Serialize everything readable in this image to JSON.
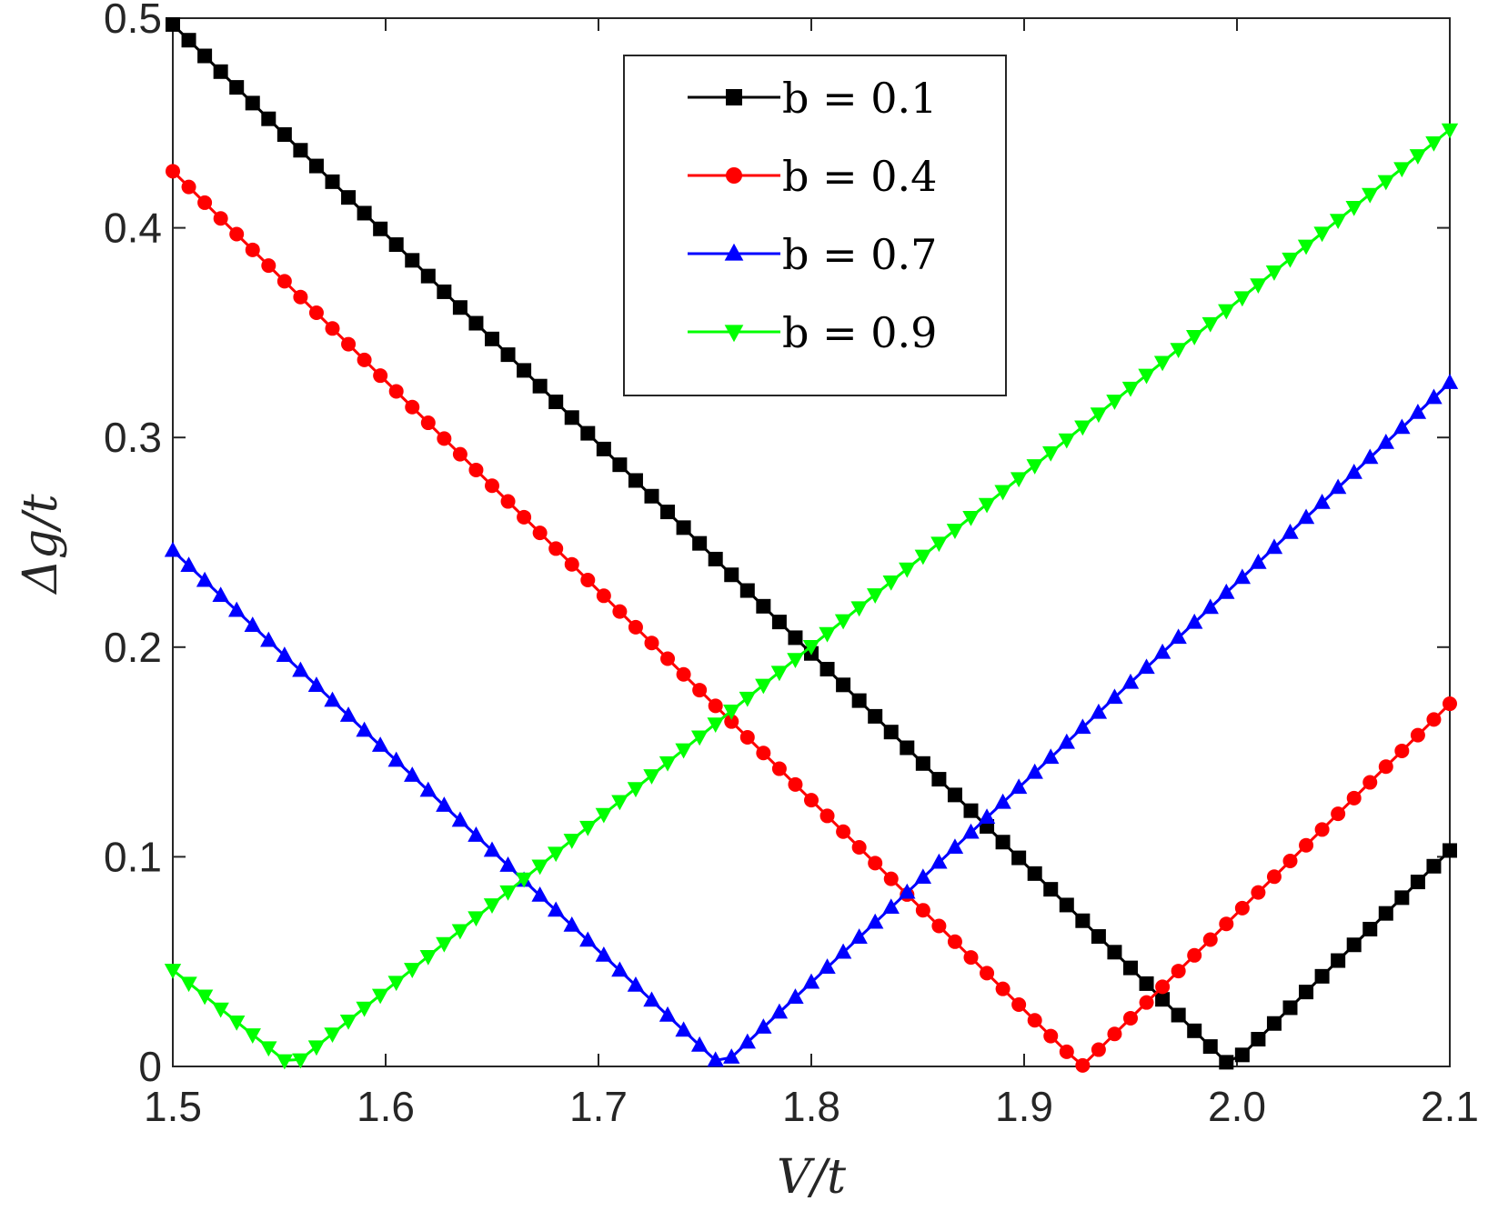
{
  "chart_data": {
    "type": "line",
    "title": "",
    "xlabel": "V/t",
    "ylabel": "Δg/t",
    "xlim": [
      1.5,
      2.1
    ],
    "ylim": [
      0,
      0.5
    ],
    "xticks": [
      "1.5",
      "1.6",
      "1.7",
      "1.8",
      "1.9",
      "2.0",
      "2.1"
    ],
    "yticks": [
      "0",
      "0.1",
      "0.2",
      "0.3",
      "0.4",
      "0.5"
    ],
    "grid": false,
    "legend_position": "top-center",
    "x_start": 1.5,
    "x_step": 0.0075,
    "x_count": 81,
    "series": [
      {
        "name": "b = 0.1",
        "color": "#000000",
        "marker": "square",
        "gap_at_start": 0.497,
        "closing_point": 1.997
      },
      {
        "name": "b = 0.4",
        "color": "#ff0000",
        "marker": "circle",
        "gap_at_start": 0.427,
        "closing_point": 1.927
      },
      {
        "name": "b = 0.7",
        "color": "#0000ff",
        "marker": "triangle-up",
        "gap_at_start": 0.246,
        "closing_point": 1.758
      },
      {
        "name": "b = 0.9",
        "color": "#00ff00",
        "marker": "triangle-down",
        "gap_at_start": 0.046,
        "closing_point": 1.556
      }
    ]
  }
}
